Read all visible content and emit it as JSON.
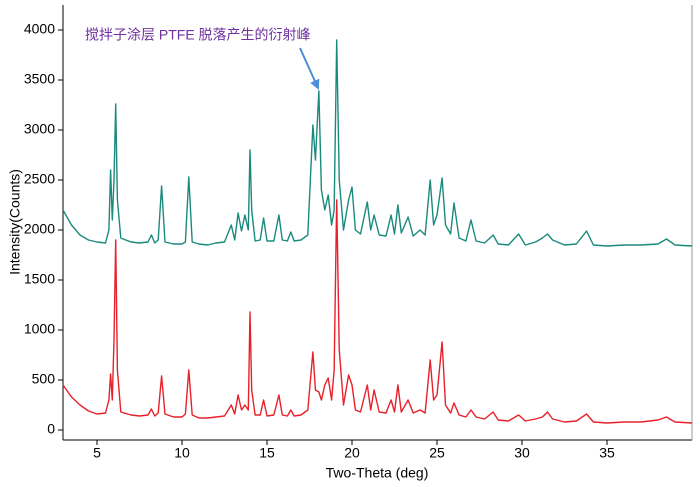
{
  "chart_data": {
    "type": "line",
    "xlabel": "Two-Theta (deg)",
    "ylabel": "Intensity(Counts)",
    "annotation": "搅拌子涂层 PTFE 脱落产生的衍射峰",
    "xlim": [
      3,
      40
    ],
    "ylim": [
      -100,
      4250
    ],
    "xticks": [
      5,
      10,
      15,
      20,
      25,
      30,
      35
    ],
    "yticks": [
      0,
      500,
      1000,
      1500,
      2000,
      2500,
      3000,
      3500,
      4000
    ],
    "x": [
      3,
      3.5,
      4,
      4.5,
      5,
      5.5,
      5.7,
      5.8,
      5.9,
      6.0,
      6.1,
      6.2,
      6.4,
      7,
      7.5,
      8.0,
      8.2,
      8.4,
      8.6,
      8.8,
      9.0,
      9.5,
      10.0,
      10.2,
      10.4,
      10.6,
      11,
      11.5,
      12,
      12.5,
      12.9,
      13.1,
      13.3,
      13.5,
      13.7,
      13.9,
      14.0,
      14.1,
      14.3,
      14.6,
      14.8,
      15.0,
      15.4,
      15.7,
      15.9,
      16.2,
      16.4,
      16.6,
      17.0,
      17.4,
      17.7,
      17.85,
      18.05,
      18.2,
      18.4,
      18.6,
      18.8,
      18.95,
      19.1,
      19.25,
      19.5,
      19.8,
      20.0,
      20.2,
      20.5,
      20.9,
      21.1,
      21.3,
      21.6,
      22.0,
      22.3,
      22.5,
      22.7,
      22.9,
      23.3,
      23.6,
      24.0,
      24.3,
      24.6,
      24.8,
      25.0,
      25.3,
      25.5,
      25.8,
      26.0,
      26.3,
      26.7,
      27.0,
      27.3,
      27.8,
      28.3,
      28.6,
      29.2,
      29.8,
      30.2,
      30.8,
      31.2,
      31.5,
      31.8,
      32.5,
      33.2,
      33.8,
      34.2,
      35,
      36,
      37,
      38,
      38.5,
      39,
      40
    ],
    "series": [
      {
        "color": "#1a8a7c",
        "values": [
          2200,
          2050,
          1950,
          1900,
          1880,
          1870,
          2000,
          2600,
          2100,
          2500,
          3260,
          2300,
          1920,
          1880,
          1870,
          1880,
          1950,
          1870,
          1900,
          2440,
          1880,
          1860,
          1860,
          1880,
          2530,
          1880,
          1860,
          1850,
          1870,
          1880,
          2050,
          1900,
          2170,
          1990,
          2150,
          2000,
          2800,
          2200,
          1890,
          1900,
          2120,
          1890,
          1890,
          2150,
          1900,
          1890,
          1980,
          1890,
          1900,
          1950,
          3050,
          2700,
          3390,
          2400,
          2200,
          2350,
          2050,
          2200,
          3900,
          2500,
          2000,
          2300,
          2430,
          2000,
          1960,
          2280,
          2000,
          2150,
          1950,
          1940,
          2150,
          1960,
          2250,
          1970,
          2130,
          1940,
          2000,
          1950,
          2500,
          2050,
          2150,
          2520,
          2050,
          1960,
          2270,
          1920,
          1890,
          2100,
          1890,
          1870,
          1950,
          1860,
          1850,
          1960,
          1850,
          1880,
          1920,
          1960,
          1900,
          1850,
          1860,
          1990,
          1850,
          1840,
          1850,
          1850,
          1860,
          1910,
          1850,
          1840
        ]
      },
      {
        "color": "#e8202a",
        "values": [
          450,
          330,
          250,
          190,
          160,
          170,
          300,
          560,
          300,
          900,
          1900,
          600,
          180,
          150,
          140,
          150,
          210,
          140,
          170,
          540,
          160,
          130,
          130,
          160,
          600,
          150,
          120,
          120,
          130,
          140,
          250,
          160,
          350,
          200,
          250,
          200,
          1180,
          400,
          150,
          150,
          300,
          140,
          150,
          350,
          150,
          140,
          200,
          140,
          150,
          200,
          780,
          400,
          380,
          300,
          450,
          520,
          300,
          600,
          2300,
          800,
          250,
          550,
          450,
          200,
          180,
          450,
          200,
          400,
          180,
          170,
          300,
          180,
          450,
          180,
          300,
          170,
          200,
          170,
          700,
          300,
          350,
          880,
          250,
          170,
          270,
          150,
          130,
          200,
          130,
          110,
          180,
          100,
          90,
          150,
          90,
          110,
          130,
          180,
          110,
          80,
          90,
          160,
          80,
          70,
          80,
          80,
          100,
          130,
          80,
          70
        ]
      }
    ]
  }
}
